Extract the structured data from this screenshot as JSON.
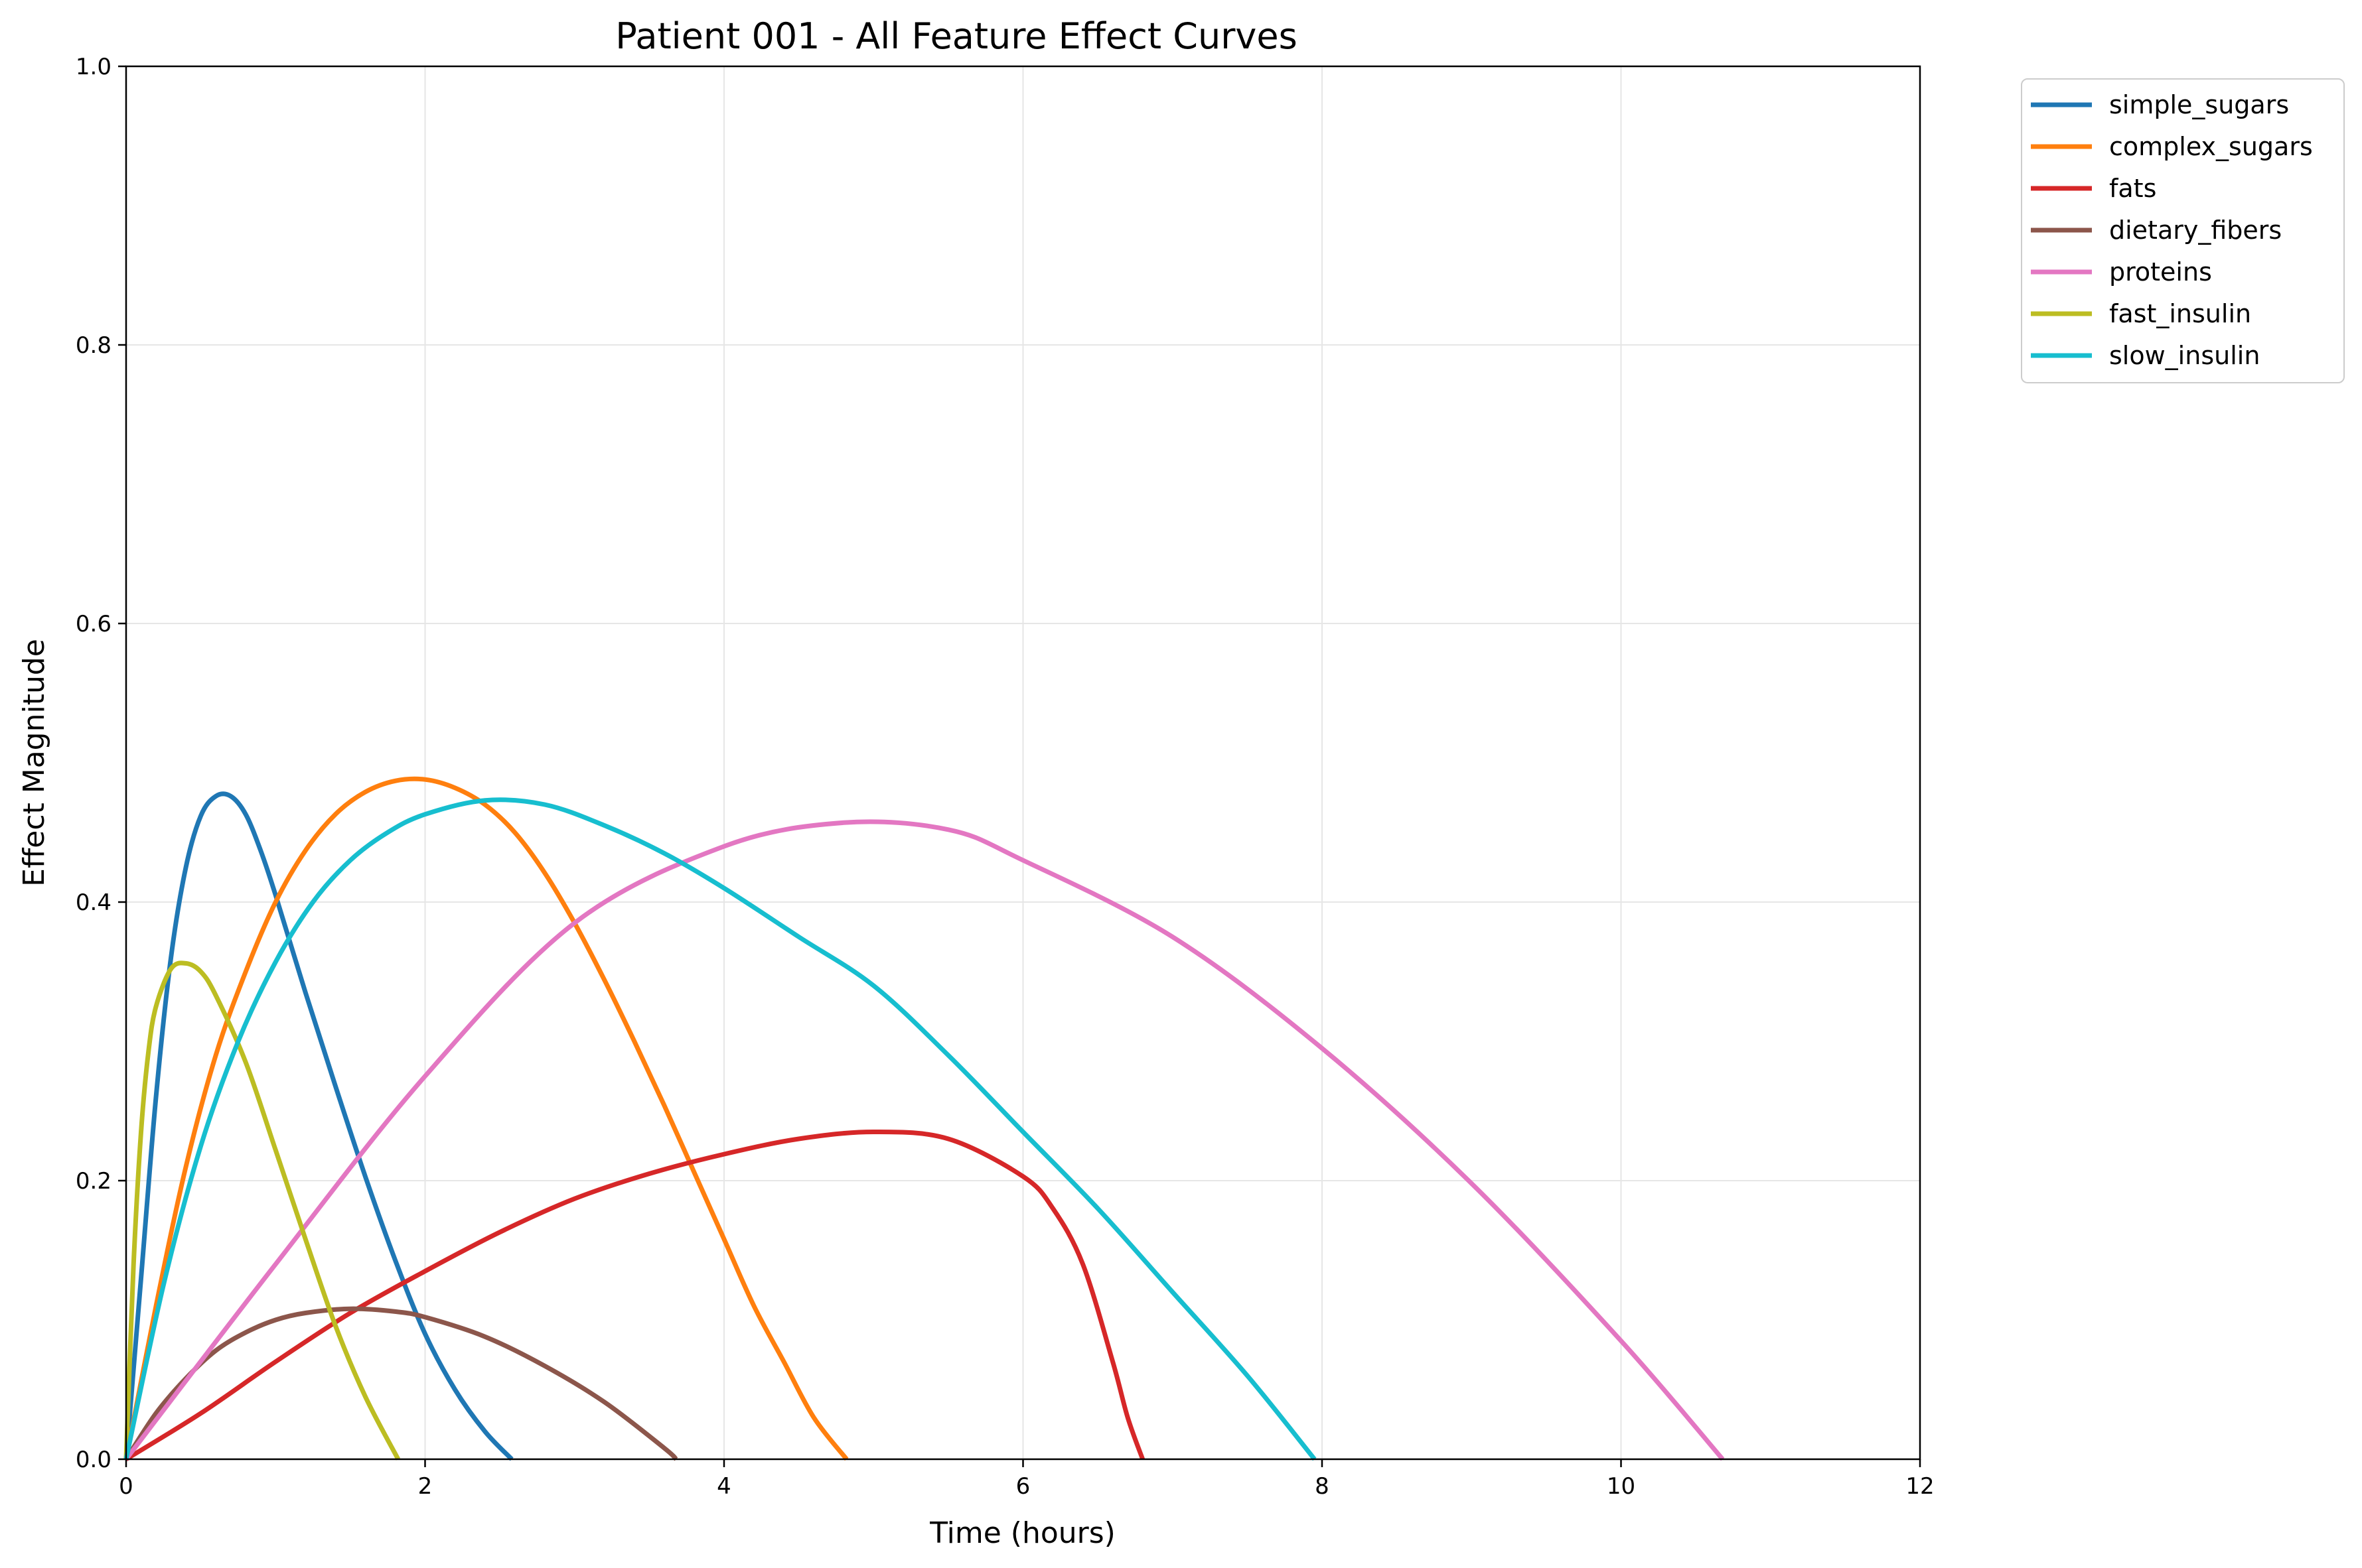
{
  "chart_data": {
    "type": "line",
    "title": "Patient 001 - All Feature Effect Curves",
    "xlabel": "Time (hours)",
    "ylabel": "Effect Magnitude",
    "xlim": [
      0,
      12
    ],
    "ylim": [
      0,
      1.0
    ],
    "xticks": [
      "0",
      "2",
      "4",
      "6",
      "8",
      "10",
      "12"
    ],
    "yticks": [
      "0.0",
      "0.2",
      "0.4",
      "0.6",
      "0.8",
      "1.0"
    ],
    "grid": true,
    "legend_position": "outside-top-right",
    "series": [
      {
        "name": "simple_sugars",
        "color": "#1f77b4",
        "x": [
          0,
          0.1,
          0.2,
          0.3,
          0.4,
          0.5,
          0.6,
          0.7,
          0.8,
          0.9,
          1.0,
          1.2,
          1.4,
          1.6,
          1.8,
          2.0,
          2.2,
          2.4,
          2.58
        ],
        "y": [
          0,
          0.13,
          0.26,
          0.36,
          0.425,
          0.462,
          0.476,
          0.476,
          0.463,
          0.437,
          0.405,
          0.335,
          0.268,
          0.203,
          0.143,
          0.09,
          0.05,
          0.02,
          0
        ]
      },
      {
        "name": "complex_sugars",
        "color": "#ff7f0e",
        "x": [
          0,
          0.2,
          0.4,
          0.6,
          0.8,
          1.0,
          1.2,
          1.4,
          1.6,
          1.8,
          2.0,
          2.2,
          2.4,
          2.6,
          2.8,
          3.0,
          3.2,
          3.4,
          3.6,
          3.8,
          4.0,
          4.2,
          4.4,
          4.6,
          4.82
        ],
        "y": [
          0,
          0.11,
          0.21,
          0.29,
          0.35,
          0.4,
          0.437,
          0.463,
          0.479,
          0.487,
          0.488,
          0.482,
          0.47,
          0.45,
          0.421,
          0.385,
          0.344,
          0.3,
          0.254,
          0.206,
          0.158,
          0.11,
          0.07,
          0.03,
          0
        ]
      },
      {
        "name": "fats",
        "color": "#d62728",
        "x": [
          0,
          0.5,
          1.0,
          1.5,
          2.0,
          2.5,
          3.0,
          3.5,
          4.0,
          4.5,
          5.0,
          5.5,
          6.0,
          6.2,
          6.4,
          6.6,
          6.7,
          6.8
        ],
        "y": [
          0,
          0.033,
          0.07,
          0.105,
          0.135,
          0.163,
          0.187,
          0.205,
          0.219,
          0.23,
          0.235,
          0.23,
          0.203,
          0.18,
          0.14,
          0.07,
          0.03,
          0
        ]
      },
      {
        "name": "dietary_fibers",
        "color": "#8c564b",
        "x": [
          0,
          0.2,
          0.4,
          0.6,
          0.8,
          1.0,
          1.2,
          1.5,
          1.8,
          2.0,
          2.4,
          2.8,
          3.2,
          3.6,
          3.68
        ],
        "y": [
          0,
          0.033,
          0.058,
          0.078,
          0.091,
          0.1,
          0.105,
          0.108,
          0.106,
          0.102,
          0.088,
          0.067,
          0.041,
          0.008,
          0
        ]
      },
      {
        "name": "proteins",
        "color": "#e377c2",
        "x": [
          0,
          1.0,
          2.0,
          3.0,
          4.0,
          4.8,
          5.5,
          6.0,
          7.0,
          8.0,
          9.0,
          10.0,
          10.68
        ],
        "y": [
          0,
          0.14,
          0.275,
          0.385,
          0.44,
          0.457,
          0.452,
          0.43,
          0.375,
          0.295,
          0.198,
          0.085,
          0
        ]
      },
      {
        "name": "fast_insulin",
        "color": "#bcbd22",
        "x": [
          0,
          0.05,
          0.1,
          0.15,
          0.2,
          0.3,
          0.4,
          0.5,
          0.6,
          0.8,
          1.0,
          1.2,
          1.4,
          1.6,
          1.82
        ],
        "y": [
          0,
          0.14,
          0.235,
          0.293,
          0.325,
          0.352,
          0.356,
          0.35,
          0.333,
          0.285,
          0.222,
          0.158,
          0.096,
          0.045,
          0
        ]
      },
      {
        "name": "slow_insulin",
        "color": "#17becf",
        "x": [
          0,
          0.25,
          0.5,
          0.75,
          1.0,
          1.25,
          1.5,
          1.75,
          2.0,
          2.4,
          2.8,
          3.2,
          3.6,
          4.0,
          4.5,
          5.0,
          5.5,
          6.0,
          6.5,
          7.0,
          7.5,
          7.95
        ],
        "y": [
          0,
          0.125,
          0.225,
          0.3,
          0.357,
          0.4,
          0.43,
          0.45,
          0.463,
          0.473,
          0.47,
          0.455,
          0.435,
          0.41,
          0.375,
          0.34,
          0.29,
          0.235,
          0.18,
          0.12,
          0.06,
          0
        ]
      }
    ]
  }
}
